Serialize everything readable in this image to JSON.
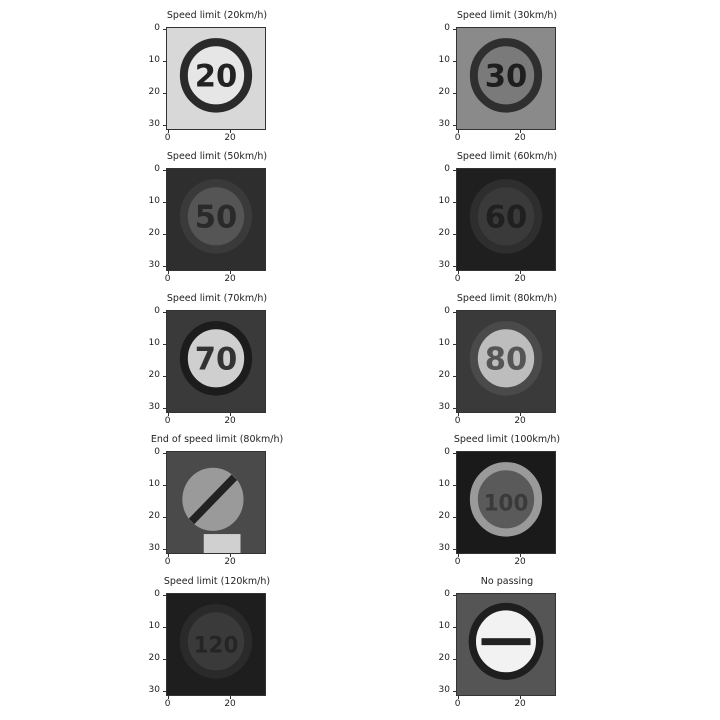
{
  "figure": {
    "y_ticks": [
      "0",
      "10",
      "20",
      "30"
    ],
    "x_ticks": [
      "0",
      "20"
    ],
    "panels": [
      {
        "title": "Speed limit (20km/h)",
        "glyph": "20",
        "bg": "#d8d8d8",
        "ring": "#2a2a2a",
        "face": "#e6e6e6",
        "text": "#222222",
        "kind": "round"
      },
      {
        "title": "Speed limit (30km/h)",
        "glyph": "30",
        "bg": "#8a8a8a",
        "ring": "#2f2f2f",
        "face": "#7a7a7a",
        "text": "#1e1e1e",
        "kind": "round"
      },
      {
        "title": "Speed limit (50km/h)",
        "glyph": "50",
        "bg": "#2e2e2e",
        "ring": "#3a3a3a",
        "face": "#555555",
        "text": "#2a2a2a",
        "kind": "round"
      },
      {
        "title": "Speed limit (60km/h)",
        "glyph": "60",
        "bg": "#1f1f1f",
        "ring": "#2e2e2e",
        "face": "#3a3a3a",
        "text": "#202020",
        "kind": "round"
      },
      {
        "title": "Speed limit (70km/h)",
        "glyph": "70",
        "bg": "#3a3a3a",
        "ring": "#1c1c1c",
        "face": "#cfcfcf",
        "text": "#333333",
        "kind": "round"
      },
      {
        "title": "Speed limit (80km/h)",
        "glyph": "80",
        "bg": "#3a3a3a",
        "ring": "#4a4a4a",
        "face": "#bdbdbd",
        "text": "#555555",
        "kind": "round"
      },
      {
        "title": "End of speed limit (80km/h)",
        "glyph": "",
        "bg": "#4a4a4a",
        "ring": "#6a6a6a",
        "face": "#9a9a9a",
        "text": "#222222",
        "kind": "end"
      },
      {
        "title": "Speed limit (100km/h)",
        "glyph": "100",
        "bg": "#1a1a1a",
        "ring": "#9a9a9a",
        "face": "#5a5a5a",
        "text": "#3a3a3a",
        "kind": "round"
      },
      {
        "title": "Speed limit (120km/h)",
        "glyph": "120",
        "bg": "#1e1e1e",
        "ring": "#2a2a2a",
        "face": "#3a3a3a",
        "text": "#252525",
        "kind": "round"
      },
      {
        "title": "No passing",
        "glyph": "",
        "bg": "#555555",
        "ring": "#1e1e1e",
        "face": "#f2f2f2",
        "text": "#222222",
        "kind": "nopass"
      }
    ]
  }
}
